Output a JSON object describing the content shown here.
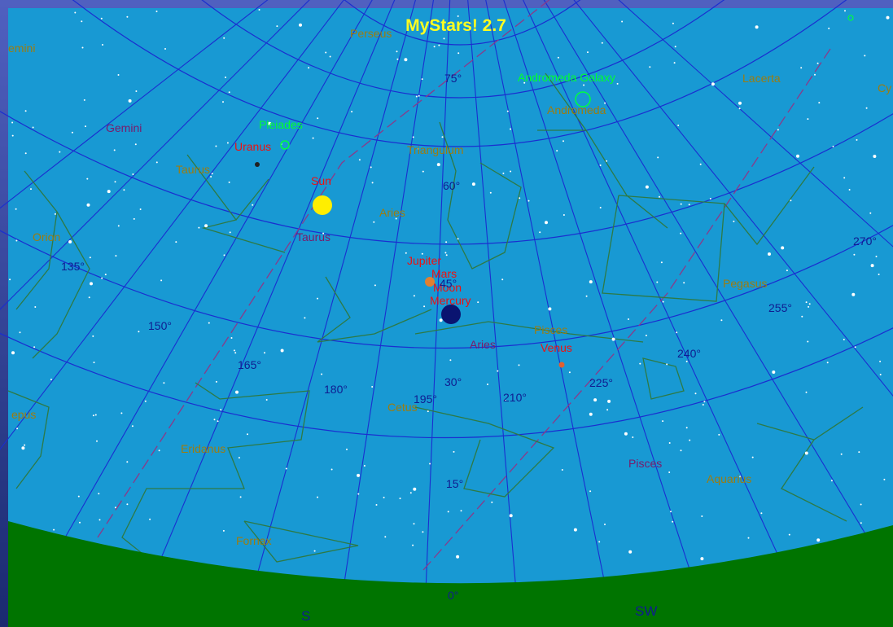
{
  "title": "MyStars! 2.7",
  "labels": [
    {
      "text": "Perseus",
      "kind": "constellation"
    },
    {
      "text": "emini",
      "kind": "constellation"
    },
    {
      "text": "Gemini",
      "kind": "constellation-purple"
    },
    {
      "text": "Pleiades",
      "kind": "deep-sky"
    },
    {
      "text": "Uranus",
      "kind": "planet"
    },
    {
      "text": "Taurus",
      "kind": "constellation"
    },
    {
      "text": "Sun",
      "kind": "planet"
    },
    {
      "text": "Triangulum",
      "kind": "constellation"
    },
    {
      "text": "Aries",
      "kind": "constellation"
    },
    {
      "text": "Taurus",
      "kind": "constellation-purple"
    },
    {
      "text": "Andromeda Galaxy",
      "kind": "deep-sky"
    },
    {
      "text": "Andromeda",
      "kind": "constellation"
    },
    {
      "text": "Lacerta",
      "kind": "constellation"
    },
    {
      "text": "Cy",
      "kind": "constellation"
    },
    {
      "text": "Orion",
      "kind": "constellation"
    },
    {
      "text": "Jupiter",
      "kind": "planet"
    },
    {
      "text": "Mars",
      "kind": "planet"
    },
    {
      "text": "Moon",
      "kind": "planet"
    },
    {
      "text": "Mercury",
      "kind": "planet"
    },
    {
      "text": "Pegasus",
      "kind": "constellation"
    },
    {
      "text": "Pisces",
      "kind": "constellation"
    },
    {
      "text": "Venus",
      "kind": "planet"
    },
    {
      "text": "Aries",
      "kind": "constellation-purple"
    },
    {
      "text": "Cetus",
      "kind": "constellation"
    },
    {
      "text": "Eridanus",
      "kind": "constellation"
    },
    {
      "text": "epus",
      "kind": "constellation"
    },
    {
      "text": "Pisces",
      "kind": "constellation-purple"
    },
    {
      "text": "Aquarius",
      "kind": "constellation"
    },
    {
      "text": "Fornax",
      "kind": "constellation"
    }
  ],
  "altitude_labels": [
    "75°",
    "60°",
    "45°",
    "30°",
    "15°",
    "0°"
  ],
  "azimuth_labels": [
    "135°",
    "150°",
    "165°",
    "180°",
    "195°",
    "210°",
    "225°",
    "240°",
    "255°",
    "270°"
  ],
  "compass_labels": [
    "S",
    "SW"
  ]
}
